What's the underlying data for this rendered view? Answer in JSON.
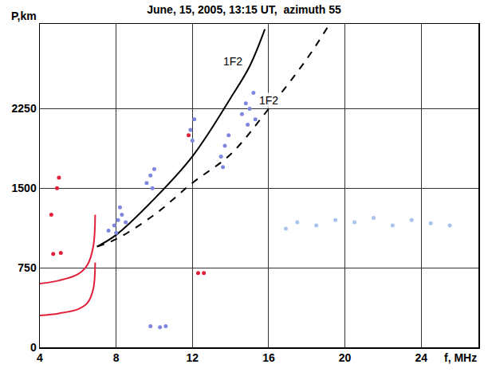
{
  "chart_data": {
    "type": "line",
    "title": "June, 15, 2005, 13:15 UT,  azimuth 55",
    "x_label": "f, MHz",
    "y_label": "P,km",
    "xlim": [
      4,
      27
    ],
    "ylim": [
      0,
      3050
    ],
    "xticks": [
      4,
      8,
      12,
      16,
      20,
      24
    ],
    "yticks": [
      0,
      750,
      1500,
      2250
    ],
    "grid": true,
    "series": [
      {
        "type": "line",
        "color": "#000000",
        "line_style": "solid",
        "x": [
          7.0,
          8,
          10,
          12,
          14,
          15,
          15.8
        ],
        "values": [
          950,
          1060,
          1400,
          1800,
          2350,
          2650,
          3000
        ]
      },
      {
        "type": "line",
        "color": "#000000",
        "line_style": "dashed",
        "x": [
          7.0,
          8,
          10,
          12,
          14,
          16,
          18,
          19.2
        ],
        "values": [
          950,
          1020,
          1250,
          1550,
          1820,
          2250,
          2720,
          3050
        ]
      },
      {
        "type": "line",
        "color": "#e0203a",
        "line_style": "solid",
        "x": [
          4,
          5,
          6,
          6.5,
          6.8,
          6.9
        ],
        "values": [
          300,
          320,
          360,
          420,
          550,
          800
        ]
      },
      {
        "type": "line",
        "color": "#e0203a",
        "line_style": "solid",
        "x": [
          4,
          5,
          6,
          6.5,
          6.8,
          6.9
        ],
        "values": [
          600,
          630,
          690,
          780,
          950,
          1250
        ]
      },
      {
        "type": "scatter",
        "color": "#e0203a",
        "marker": "circle",
        "x": [
          4.7,
          5.1,
          4.6,
          4.9,
          5.0,
          11.8,
          12.3,
          12.6
        ],
        "values": [
          880,
          890,
          1250,
          1500,
          1600,
          2000,
          700,
          700
        ]
      },
      {
        "type": "scatter",
        "color": "#7f86e0",
        "marker": "circle",
        "x": [
          7.6,
          7.9,
          8.1,
          8.3,
          8.5,
          8.2,
          8.0,
          9.6,
          9.8,
          10.0,
          9.9,
          11.9,
          12.1,
          12.0,
          13.5,
          13.7,
          13.9,
          13.6,
          14.6,
          14.8,
          15.0,
          15.2,
          14.9,
          15.3,
          9.8,
          10.3,
          10.6
        ],
        "values": [
          1100,
          1150,
          1200,
          1250,
          1180,
          1320,
          1080,
          1550,
          1620,
          1680,
          1500,
          2050,
          2150,
          1950,
          1800,
          1900,
          2000,
          1700,
          2200,
          2300,
          2250,
          2400,
          2100,
          2150,
          200,
          190,
          200
        ]
      },
      {
        "type": "scatter",
        "color": "#a8c4ee",
        "marker": "circle",
        "x": [
          16.9,
          17.5,
          18.5,
          19.5,
          20.5,
          21.5,
          22.5,
          23.5,
          24.5,
          25.5
        ],
        "values": [
          1120,
          1180,
          1150,
          1200,
          1180,
          1220,
          1150,
          1200,
          1170,
          1150
        ]
      }
    ],
    "annotations": [
      {
        "text": "1F2",
        "x": 14.1,
        "y": 2700
      },
      {
        "text": "1F2",
        "x": 16.0,
        "y": 2330
      }
    ]
  }
}
